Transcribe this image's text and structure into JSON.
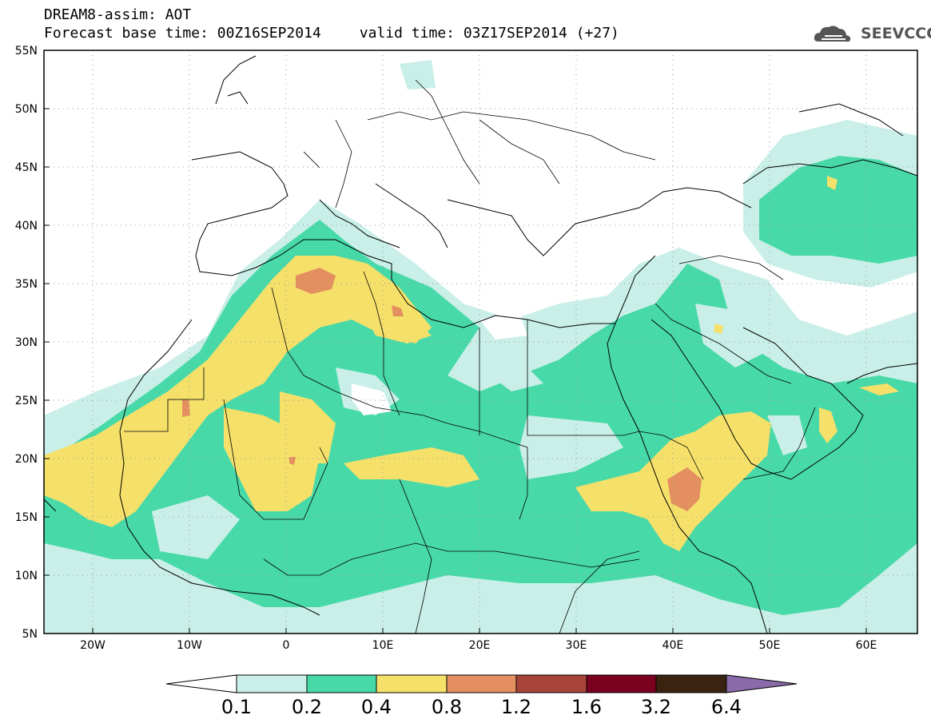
{
  "title": {
    "line1": "DREAM8-assim: AOT",
    "base_time": "Forecast base time: 00Z16SEP2014",
    "valid_time": "valid time: 03Z17SEP2014 (+27)"
  },
  "logo": {
    "text": "SEEVCCC",
    "icon": "cloud-logo-icon"
  },
  "axes": {
    "lat_labels": [
      "55N",
      "50N",
      "45N",
      "40N",
      "35N",
      "30N",
      "25N",
      "20N",
      "15N",
      "10N",
      "5N"
    ],
    "lon_labels": [
      "20W",
      "10W",
      "0",
      "10E",
      "20E",
      "30E",
      "40E",
      "50E",
      "60E"
    ],
    "lon_range": [
      -25,
      65
    ],
    "lat_range": [
      5,
      55
    ]
  },
  "colorbar": {
    "labels": [
      "0.1",
      "0.2",
      "0.4",
      "0.8",
      "1.2",
      "1.6",
      "3.2",
      "6.4"
    ],
    "colors": [
      "#ffffff",
      "#c9efe8",
      "#48d9a8",
      "#f5e06a",
      "#e48f5f",
      "#a9443a",
      "#7a0020",
      "#3a2310",
      "#8a6aa8"
    ]
  },
  "map_data": {
    "fields": {
      "aot_0.1_0.2": "#c9efe8",
      "aot_0.2_0.4": "#48d9a8",
      "aot_0.4_0.8": "#f5e06a",
      "aot_0.8_1.2": "#e48f5f",
      "aot_1.2_1.6": "#a9443a"
    }
  }
}
